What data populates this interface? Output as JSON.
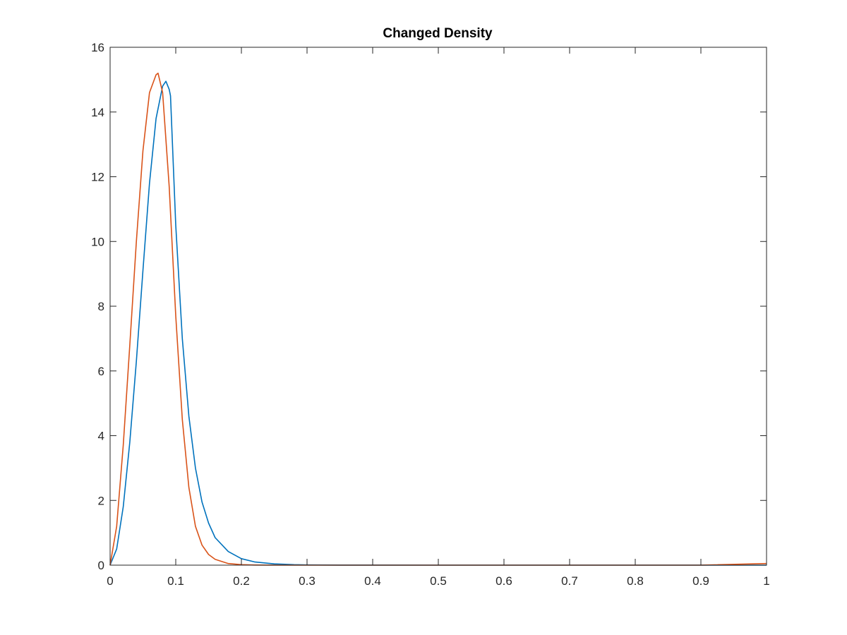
{
  "chart_data": {
    "type": "line",
    "title": "Changed Density",
    "xlabel": "",
    "ylabel": "",
    "xlim": [
      0,
      1
    ],
    "ylim": [
      0,
      16
    ],
    "x_ticks": [
      0,
      0.1,
      0.2,
      0.3,
      0.4,
      0.5,
      0.6,
      0.7,
      0.8,
      0.9,
      1
    ],
    "x_tick_labels": [
      "0",
      "0.1",
      "0.2",
      "0.3",
      "0.4",
      "0.5",
      "0.6",
      "0.7",
      "0.8",
      "0.9",
      "1"
    ],
    "y_ticks": [
      0,
      2,
      4,
      6,
      8,
      10,
      12,
      14,
      16
    ],
    "y_tick_labels": [
      "0",
      "2",
      "4",
      "6",
      "8",
      "10",
      "12",
      "14",
      "16"
    ],
    "grid": false,
    "legend": "none",
    "series": [
      {
        "color": "#0072BD",
        "x": [
          0,
          0.01,
          0.02,
          0.03,
          0.04,
          0.05,
          0.06,
          0.07,
          0.08,
          0.085,
          0.09,
          0.092,
          0.1,
          0.11,
          0.12,
          0.13,
          0.14,
          0.15,
          0.16,
          0.18,
          0.2,
          0.22,
          0.25,
          0.28,
          0.3,
          0.35,
          0.4,
          0.5,
          0.6,
          0.7,
          0.8,
          0.9,
          1
        ],
        "y": [
          0,
          0.5,
          1.8,
          3.8,
          6.3,
          9.1,
          11.8,
          13.8,
          14.8,
          14.95,
          14.7,
          14.5,
          10.5,
          7.0,
          4.6,
          3.0,
          1.95,
          1.3,
          0.85,
          0.42,
          0.2,
          0.1,
          0.04,
          0.015,
          0.008,
          0.002,
          0.001,
          0,
          0,
          0,
          0,
          0,
          0
        ]
      },
      {
        "color": "#D95319",
        "x": [
          0,
          0.01,
          0.02,
          0.03,
          0.04,
          0.05,
          0.06,
          0.07,
          0.073,
          0.08,
          0.09,
          0.1,
          0.11,
          0.12,
          0.13,
          0.14,
          0.15,
          0.16,
          0.18,
          0.2,
          0.22,
          0.25,
          0.3,
          0.4,
          0.5,
          0.6,
          0.7,
          0.8,
          0.9,
          1
        ],
        "y": [
          0,
          1.2,
          3.7,
          6.8,
          10.0,
          12.8,
          14.6,
          15.15,
          15.2,
          14.6,
          11.7,
          7.7,
          4.5,
          2.4,
          1.2,
          0.62,
          0.33,
          0.18,
          0.05,
          0.015,
          0.005,
          0.001,
          0,
          0,
          0,
          0,
          0,
          0,
          0,
          0.05
        ]
      }
    ]
  }
}
